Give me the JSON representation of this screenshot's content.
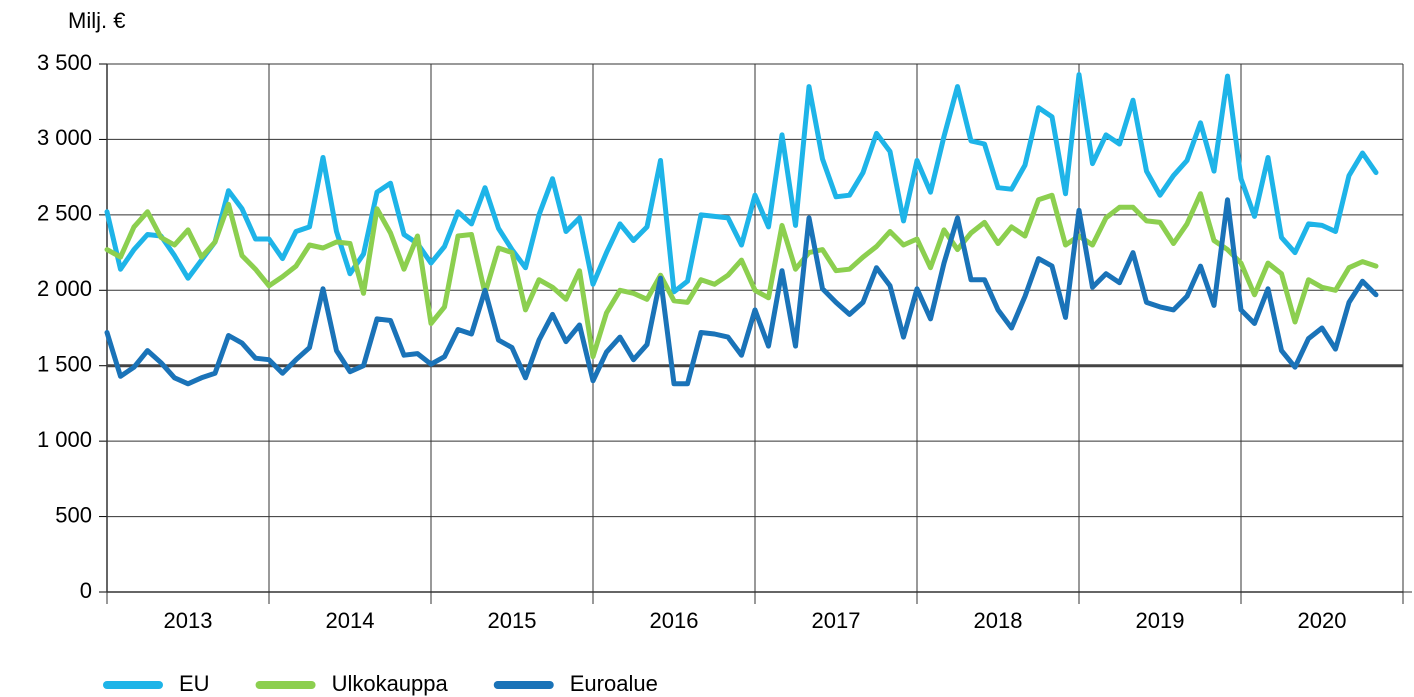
{
  "chart_data": {
    "type": "line",
    "y_label": "Milj. €",
    "years": [
      "2013",
      "2014",
      "2015",
      "2016",
      "2017",
      "2018",
      "2019",
      "2020"
    ],
    "months_per_year": 12,
    "ylim": [
      0,
      3500
    ],
    "yticks": [
      0,
      500,
      {
        "value": 1000,
        "label": "1 000"
      },
      {
        "value": 1500,
        "label": "1 500"
      },
      {
        "value": 2000,
        "label": "2 000"
      },
      {
        "value": 2500,
        "label": "2 500"
      },
      {
        "value": 3000,
        "label": "3 000"
      },
      {
        "value": 3500,
        "label": "3 500"
      }
    ],
    "x_axis_crosses": 1500,
    "grid": true,
    "legend": "bottom-left",
    "series": [
      {
        "name": "EU",
        "color": "#1eb4e8",
        "values": [
          2520,
          2140,
          2270,
          2370,
          2360,
          2230,
          2080,
          2200,
          2320,
          2660,
          2540,
          2340,
          2340,
          2210,
          2390,
          2420,
          2880,
          2390,
          2110,
          2240,
          2650,
          2710,
          2370,
          2310,
          2180,
          2290,
          2520,
          2440,
          2680,
          2410,
          2270,
          2150,
          2500,
          2740,
          2390,
          2480,
          2040,
          2250,
          2440,
          2330,
          2420,
          2860,
          1990,
          2060,
          2500,
          2490,
          2480,
          2300,
          2630,
          2420,
          3030,
          2430,
          3350,
          2870,
          2620,
          2630,
          2780,
          3040,
          2920,
          2460,
          2860,
          2650,
          3020,
          3350,
          2990,
          2970,
          2680,
          2670,
          2830,
          3210,
          3150,
          2640,
          3430,
          2840,
          3030,
          2970,
          3260,
          2790,
          2630,
          2760,
          2860,
          3110,
          2790,
          3420,
          2740,
          2490,
          2880,
          2350,
          2250,
          2440,
          2430,
          2390,
          2760,
          2910,
          2780
        ]
      },
      {
        "name": "Ulkokauppa",
        "color": "#8ccf4f",
        "values": [
          2270,
          2220,
          2420,
          2520,
          2350,
          2300,
          2400,
          2220,
          2320,
          2570,
          2230,
          2140,
          2030,
          2090,
          2160,
          2300,
          2280,
          2320,
          2310,
          1980,
          2540,
          2380,
          2140,
          2360,
          1780,
          1890,
          2360,
          2370,
          1980,
          2280,
          2250,
          1870,
          2070,
          2020,
          1940,
          2130,
          1560,
          1850,
          2000,
          1980,
          1940,
          2100,
          1930,
          1920,
          2070,
          2040,
          2100,
          2200,
          2000,
          1950,
          2430,
          2140,
          2250,
          2270,
          2130,
          2140,
          2220,
          2290,
          2390,
          2300,
          2340,
          2150,
          2400,
          2270,
          2380,
          2450,
          2310,
          2420,
          2360,
          2600,
          2630,
          2300,
          2360,
          2300,
          2480,
          2550,
          2550,
          2460,
          2450,
          2310,
          2440,
          2640,
          2330,
          2270,
          2180,
          1970,
          2180,
          2110,
          1790,
          2070,
          2020,
          2000,
          2150,
          2190,
          2160
        ]
      },
      {
        "name": "Euroalue",
        "color": "#1a73b8",
        "values": [
          1720,
          1430,
          1490,
          1600,
          1520,
          1420,
          1380,
          1420,
          1450,
          1700,
          1650,
          1550,
          1540,
          1450,
          1540,
          1620,
          2010,
          1600,
          1460,
          1500,
          1810,
          1800,
          1570,
          1580,
          1510,
          1560,
          1740,
          1710,
          2000,
          1670,
          1620,
          1420,
          1670,
          1840,
          1660,
          1770,
          1400,
          1590,
          1690,
          1540,
          1640,
          2080,
          1380,
          1380,
          1720,
          1710,
          1690,
          1570,
          1870,
          1630,
          2130,
          1630,
          2480,
          2010,
          1920,
          1840,
          1920,
          2150,
          2030,
          1690,
          2010,
          1810,
          2180,
          2480,
          2070,
          2070,
          1870,
          1750,
          1960,
          2210,
          2160,
          1820,
          2530,
          2020,
          2110,
          2050,
          2250,
          1920,
          1890,
          1870,
          1960,
          2160,
          1900,
          2600,
          1870,
          1780,
          2010,
          1600,
          1490,
          1680,
          1750,
          1610,
          1920,
          2060,
          1970
        ]
      }
    ]
  }
}
